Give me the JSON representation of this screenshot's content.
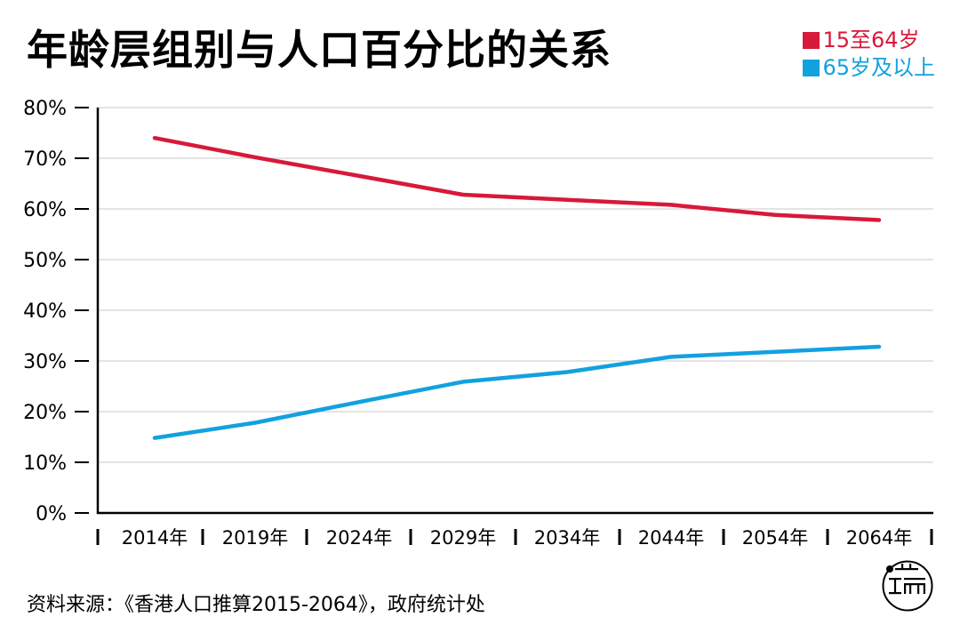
{
  "title": "年龄层组别与人口百分比的关系",
  "source": "资料来源：《香港人口推算2015-2064》，政府统计处",
  "logo_text": "端",
  "chart_data": {
    "type": "line",
    "title": "年龄层组别与人口百分比的关系",
    "xlabel": "",
    "ylabel": "",
    "categories": [
      "2014年",
      "2019年",
      "2024年",
      "2029年",
      "2034年",
      "2044年",
      "2054年",
      "2064年"
    ],
    "ylim": [
      0,
      80
    ],
    "yticks": [
      "0%",
      "10%",
      "20%",
      "30%",
      "40%",
      "50%",
      "60%",
      "70%",
      "80%"
    ],
    "grid": true,
    "legend_position": "top-right",
    "series": [
      {
        "name": "15至64岁",
        "color": "#d7193a",
        "values": [
          74,
          70.2,
          66.5,
          62.8,
          61.8,
          60.8,
          58.8,
          57.8
        ]
      },
      {
        "name": "65岁及以上",
        "color": "#12a1df",
        "values": [
          14.8,
          17.8,
          21.9,
          25.9,
          27.8,
          30.8,
          31.8,
          32.8
        ]
      }
    ]
  }
}
